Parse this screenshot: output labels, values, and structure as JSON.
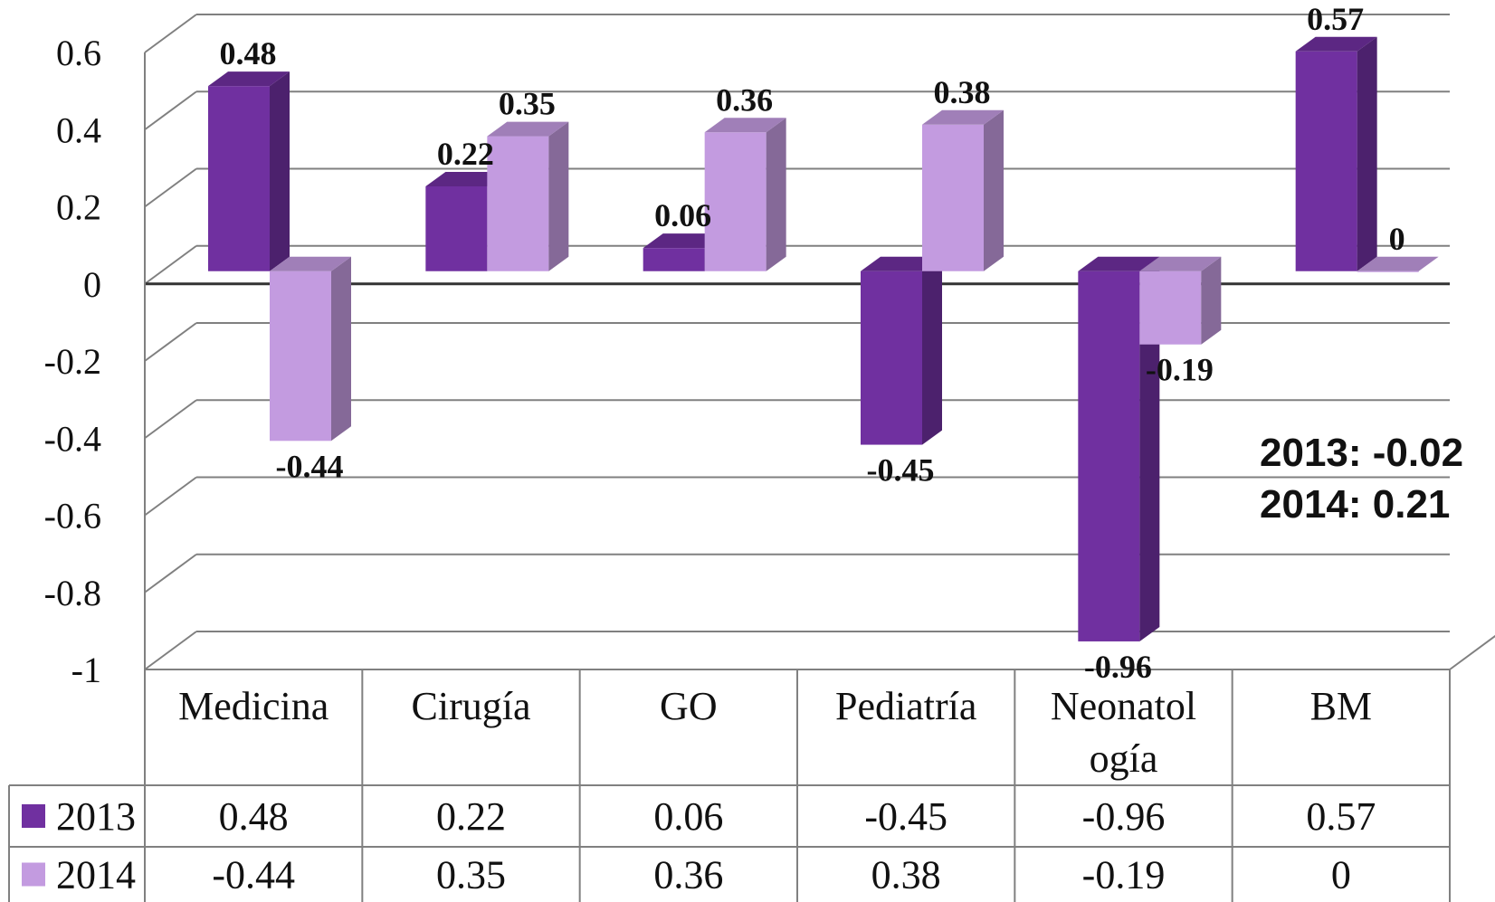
{
  "chart_data": {
    "type": "bar",
    "categories": [
      "Medicina",
      "Cirugía",
      "GO",
      "Pediatría",
      "Neonatología",
      "BM"
    ],
    "category_display": [
      [
        "Medicina"
      ],
      [
        "Cirugía"
      ],
      [
        "GO"
      ],
      [
        "Pediatría"
      ],
      [
        "Neonatol",
        "ogía"
      ],
      [
        "BM"
      ]
    ],
    "series": [
      {
        "name": "2013",
        "values": [
          0.48,
          0.22,
          0.06,
          -0.45,
          -0.96,
          0.57
        ],
        "labels": [
          "0.48",
          "0.22",
          "0.06",
          "-0.45",
          "-0.96",
          "0.57"
        ],
        "color": "#7030a0"
      },
      {
        "name": "2014",
        "values": [
          -0.44,
          0.35,
          0.36,
          0.38,
          -0.19,
          0
        ],
        "labels": [
          "-0.44",
          "0.35",
          "0.36",
          "0.38",
          "-0.19",
          "0"
        ],
        "color": "#c39be0"
      }
    ],
    "ylim": [
      -1,
      0.6
    ],
    "yticks": [
      "0.6",
      "0.4",
      "0.2",
      "0",
      "-0.2",
      "-0.4",
      "-0.6",
      "-0.8",
      "-1"
    ],
    "ytick_values": [
      0.6,
      0.4,
      0.2,
      0,
      -0.2,
      -0.4,
      -0.6,
      -0.8,
      -1
    ],
    "grid": true,
    "three_d": true,
    "data_table": true,
    "annotations": [
      "2013: -0.02",
      "2014: 0.21"
    ]
  }
}
